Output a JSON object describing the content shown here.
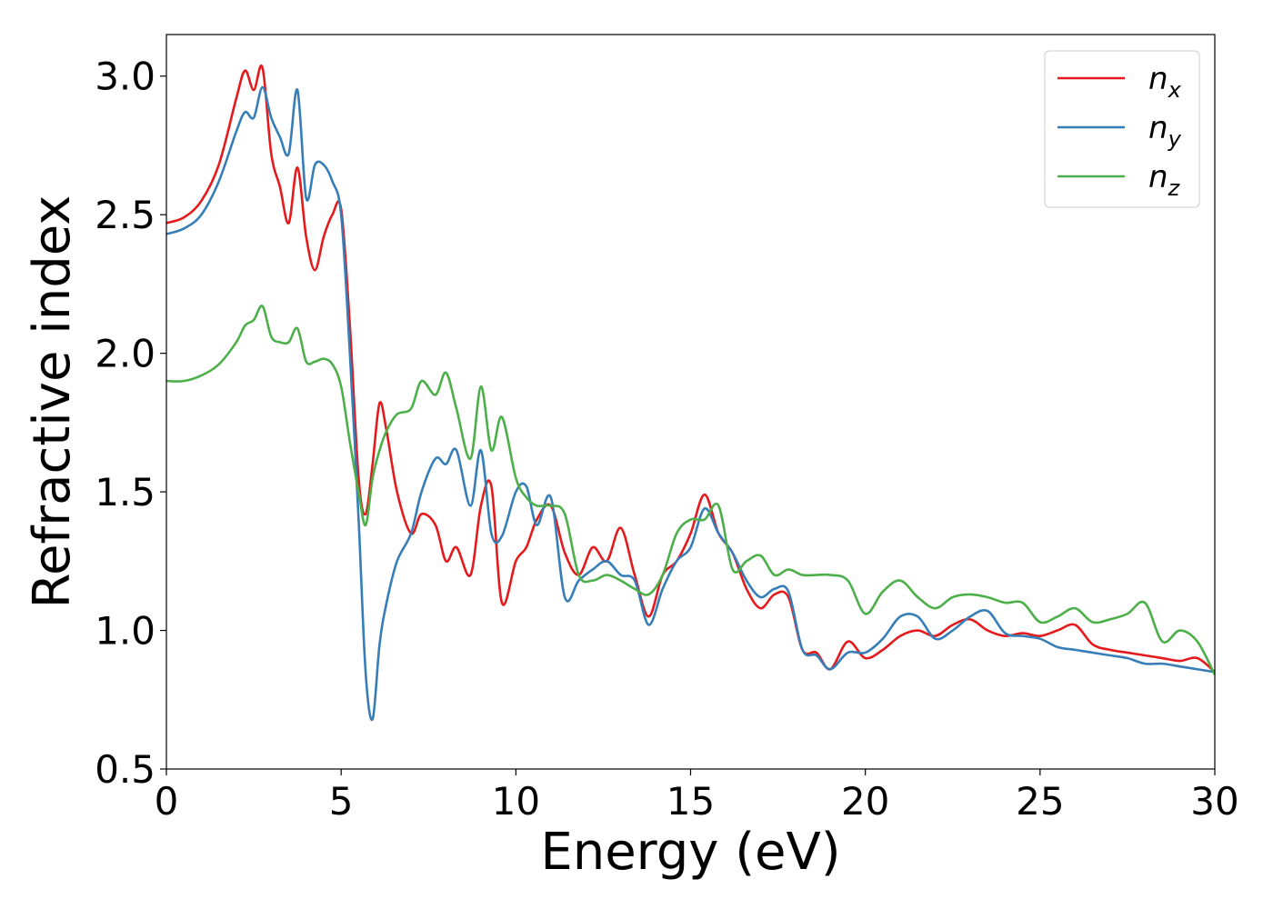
{
  "chart_data": {
    "type": "line",
    "title": "",
    "xlabel": "Energy (eV)",
    "ylabel": "Refractive index",
    "xlim": [
      0,
      30
    ],
    "ylim": [
      0.5,
      3.15
    ],
    "xticks": [
      0,
      5,
      10,
      15,
      20,
      25,
      30
    ],
    "yticks": [
      0.5,
      1.0,
      1.5,
      2.0,
      2.5,
      3.0
    ],
    "xtick_labels": [
      "0",
      "5",
      "10",
      "15",
      "20",
      "25",
      "30"
    ],
    "ytick_labels": [
      "0.5",
      "1.0",
      "1.5",
      "2.0",
      "2.5",
      "3.0"
    ],
    "grid": false,
    "legend_position": "top-right",
    "series": [
      {
        "name": "n_x",
        "label_main": "n",
        "label_sub": "x",
        "color": "#e41a1c",
        "x": [
          0,
          0.5,
          1,
          1.5,
          2,
          2.25,
          2.5,
          2.75,
          3,
          3.25,
          3.5,
          3.75,
          4,
          4.25,
          4.5,
          4.75,
          5,
          5.25,
          5.5,
          5.7,
          5.9,
          6.1,
          6.3,
          6.6,
          7,
          7.3,
          7.7,
          8,
          8.3,
          8.7,
          9,
          9.3,
          9.6,
          10,
          10.3,
          10.6,
          11,
          11.4,
          11.8,
          12.2,
          12.6,
          13,
          13.4,
          13.8,
          14.2,
          14.6,
          15,
          15.4,
          15.8,
          16.2,
          16.6,
          17,
          17.4,
          17.8,
          18.2,
          18.6,
          19,
          19.5,
          20,
          20.5,
          21,
          21.5,
          22,
          22.5,
          23,
          23.5,
          24,
          24.5,
          25,
          25.5,
          26,
          26.5,
          27,
          27.5,
          28,
          28.5,
          29,
          29.5,
          30
        ],
        "y": [
          2.47,
          2.49,
          2.55,
          2.68,
          2.92,
          3.02,
          2.95,
          3.03,
          2.72,
          2.6,
          2.47,
          2.67,
          2.42,
          2.3,
          2.42,
          2.5,
          2.52,
          2.1,
          1.55,
          1.42,
          1.6,
          1.82,
          1.72,
          1.5,
          1.35,
          1.42,
          1.38,
          1.25,
          1.3,
          1.2,
          1.45,
          1.52,
          1.1,
          1.25,
          1.3,
          1.4,
          1.45,
          1.28,
          1.2,
          1.3,
          1.25,
          1.37,
          1.2,
          1.05,
          1.2,
          1.25,
          1.35,
          1.49,
          1.35,
          1.28,
          1.15,
          1.08,
          1.13,
          1.12,
          0.93,
          0.92,
          0.86,
          0.96,
          0.9,
          0.93,
          0.98,
          1.0,
          0.98,
          1.02,
          1.04,
          1.0,
          0.98,
          0.99,
          0.98,
          1.0,
          1.02,
          0.95,
          0.93,
          0.92,
          0.91,
          0.9,
          0.89,
          0.9,
          0.85
        ]
      },
      {
        "name": "n_y",
        "label_main": "n",
        "label_sub": "y",
        "color": "#377eb8",
        "x": [
          0,
          0.5,
          1,
          1.5,
          2,
          2.25,
          2.5,
          2.75,
          3,
          3.25,
          3.5,
          3.75,
          4,
          4.25,
          4.5,
          4.75,
          5,
          5.25,
          5.5,
          5.7,
          5.9,
          6.1,
          6.3,
          6.6,
          7,
          7.3,
          7.7,
          8,
          8.3,
          8.7,
          9,
          9.3,
          9.6,
          10,
          10.3,
          10.6,
          11,
          11.4,
          11.8,
          12.2,
          12.6,
          13,
          13.4,
          13.8,
          14.2,
          14.6,
          15,
          15.4,
          15.8,
          16.2,
          16.6,
          17,
          17.4,
          17.8,
          18.2,
          18.6,
          19,
          19.5,
          20,
          20.5,
          21,
          21.5,
          22,
          22.5,
          23,
          23.5,
          24,
          24.5,
          25,
          25.5,
          26,
          26.5,
          27,
          27.5,
          28,
          28.5,
          29,
          29.5,
          30
        ],
        "y": [
          2.43,
          2.45,
          2.5,
          2.62,
          2.8,
          2.87,
          2.85,
          2.96,
          2.85,
          2.78,
          2.72,
          2.95,
          2.56,
          2.68,
          2.68,
          2.62,
          2.5,
          2.0,
          1.4,
          0.85,
          0.68,
          0.95,
          1.1,
          1.25,
          1.35,
          1.5,
          1.62,
          1.6,
          1.65,
          1.45,
          1.65,
          1.35,
          1.34,
          1.5,
          1.52,
          1.38,
          1.48,
          1.12,
          1.18,
          1.22,
          1.25,
          1.2,
          1.18,
          1.02,
          1.15,
          1.25,
          1.3,
          1.44,
          1.35,
          1.28,
          1.18,
          1.12,
          1.15,
          1.14,
          0.93,
          0.91,
          0.86,
          0.92,
          0.92,
          0.97,
          1.05,
          1.05,
          0.97,
          1.0,
          1.05,
          1.07,
          0.99,
          0.98,
          0.97,
          0.94,
          0.93,
          0.92,
          0.91,
          0.9,
          0.88,
          0.88,
          0.87,
          0.86,
          0.85
        ]
      },
      {
        "name": "n_z",
        "label_main": "n",
        "label_sub": "z",
        "color": "#4daf4a",
        "x": [
          0,
          0.5,
          1,
          1.5,
          2,
          2.25,
          2.5,
          2.75,
          3,
          3.25,
          3.5,
          3.75,
          4,
          4.25,
          4.5,
          4.75,
          5,
          5.25,
          5.5,
          5.7,
          5.9,
          6.1,
          6.3,
          6.6,
          7,
          7.3,
          7.7,
          8,
          8.3,
          8.7,
          9,
          9.3,
          9.6,
          10,
          10.3,
          10.6,
          11,
          11.4,
          11.8,
          12.2,
          12.6,
          13,
          13.4,
          13.8,
          14.2,
          14.6,
          15,
          15.4,
          15.8,
          16.2,
          16.6,
          17,
          17.4,
          17.8,
          18.2,
          18.6,
          19,
          19.5,
          20,
          20.5,
          21,
          21.5,
          22,
          22.5,
          23,
          23.5,
          24,
          24.5,
          25,
          25.5,
          26,
          26.5,
          27,
          27.5,
          28,
          28.5,
          29,
          29.5,
          30
        ],
        "y": [
          1.9,
          1.9,
          1.92,
          1.96,
          2.04,
          2.1,
          2.12,
          2.17,
          2.06,
          2.04,
          2.04,
          2.09,
          1.97,
          1.97,
          1.98,
          1.96,
          1.88,
          1.68,
          1.5,
          1.38,
          1.55,
          1.65,
          1.72,
          1.78,
          1.8,
          1.9,
          1.85,
          1.93,
          1.8,
          1.62,
          1.88,
          1.65,
          1.77,
          1.55,
          1.48,
          1.45,
          1.45,
          1.42,
          1.2,
          1.18,
          1.2,
          1.18,
          1.15,
          1.13,
          1.2,
          1.35,
          1.4,
          1.4,
          1.45,
          1.22,
          1.25,
          1.27,
          1.2,
          1.22,
          1.2,
          1.2,
          1.2,
          1.18,
          1.06,
          1.14,
          1.18,
          1.12,
          1.08,
          1.12,
          1.13,
          1.12,
          1.1,
          1.1,
          1.03,
          1.05,
          1.08,
          1.03,
          1.04,
          1.06,
          1.1,
          0.96,
          1.0,
          0.96,
          0.84
        ]
      }
    ]
  }
}
